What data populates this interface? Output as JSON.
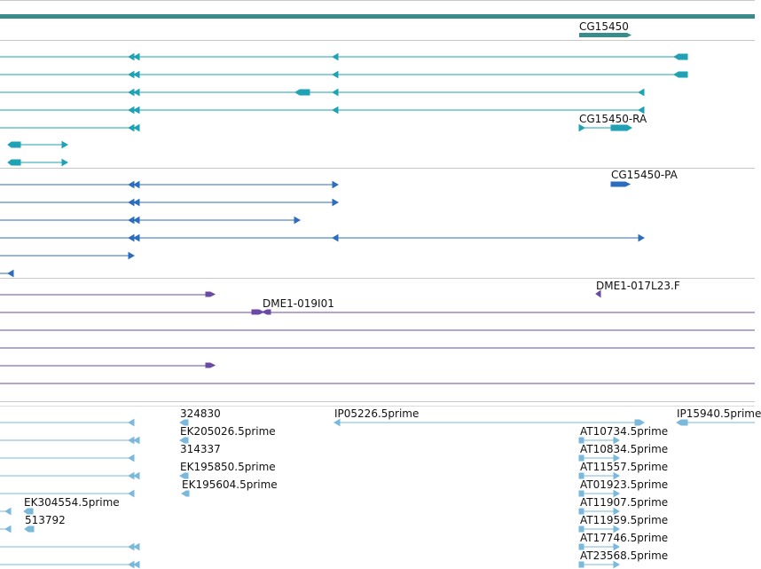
{
  "colors": {
    "gene": "#3a8c8c",
    "mrna": "#1ea2b4",
    "cds": "#2c6dbd",
    "clone": "#6a4aa6",
    "est": "#7ab8dc",
    "divider": "#c8c8c8"
  },
  "tracks": {
    "gene": {
      "labels": [
        "CG15450"
      ]
    },
    "mrna": {
      "labels": [
        "CG15450-RA"
      ]
    },
    "cds": {
      "labels": [
        "CG15450-PA"
      ]
    },
    "clones": {
      "labels": [
        "DME1-017L23.F",
        "DME1-019I01"
      ]
    },
    "est": {
      "labels": [
        "324830",
        "IP05226.5prime",
        "IP15940.5prime",
        "EK205026.5prime",
        "AT10734.5prime",
        "314337",
        "AT10834.5prime",
        "EK195850.5prime",
        "AT11557.5prime",
        "EK195604.5prime",
        "AT01923.5prime",
        "EK304554.5prime",
        "AT11907.5prime",
        "513792",
        "AT11959.5prime",
        "AT17746.5prime",
        "AT23568.5prime"
      ]
    }
  }
}
